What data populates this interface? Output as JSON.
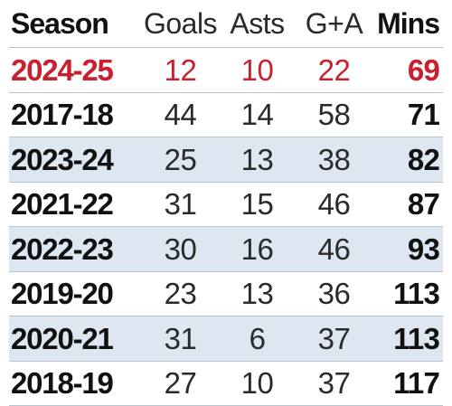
{
  "table": {
    "headers": {
      "season": "Season",
      "goals": "Goals",
      "asts": "Asts",
      "ga": "G+A",
      "mins": "Mins"
    },
    "highlight_color": "#c8202e",
    "shade_color": "#dde7f1",
    "rows": [
      {
        "season": "2024-25",
        "goals": "12",
        "asts": "10",
        "ga": "22",
        "mins": "69"
      },
      {
        "season": "2017-18",
        "goals": "44",
        "asts": "14",
        "ga": "58",
        "mins": "71"
      },
      {
        "season": "2023-24",
        "goals": "25",
        "asts": "13",
        "ga": "38",
        "mins": "82"
      },
      {
        "season": "2021-22",
        "goals": "31",
        "asts": "15",
        "ga": "46",
        "mins": "87"
      },
      {
        "season": "2022-23",
        "goals": "30",
        "asts": "16",
        "ga": "46",
        "mins": "93"
      },
      {
        "season": "2019-20",
        "goals": "23",
        "asts": "13",
        "ga": "36",
        "mins": "113"
      },
      {
        "season": "2020-21",
        "goals": "31",
        "asts": "6",
        "ga": "37",
        "mins": "113"
      },
      {
        "season": "2018-19",
        "goals": "27",
        "asts": "10",
        "ga": "37",
        "mins": "117"
      }
    ]
  }
}
